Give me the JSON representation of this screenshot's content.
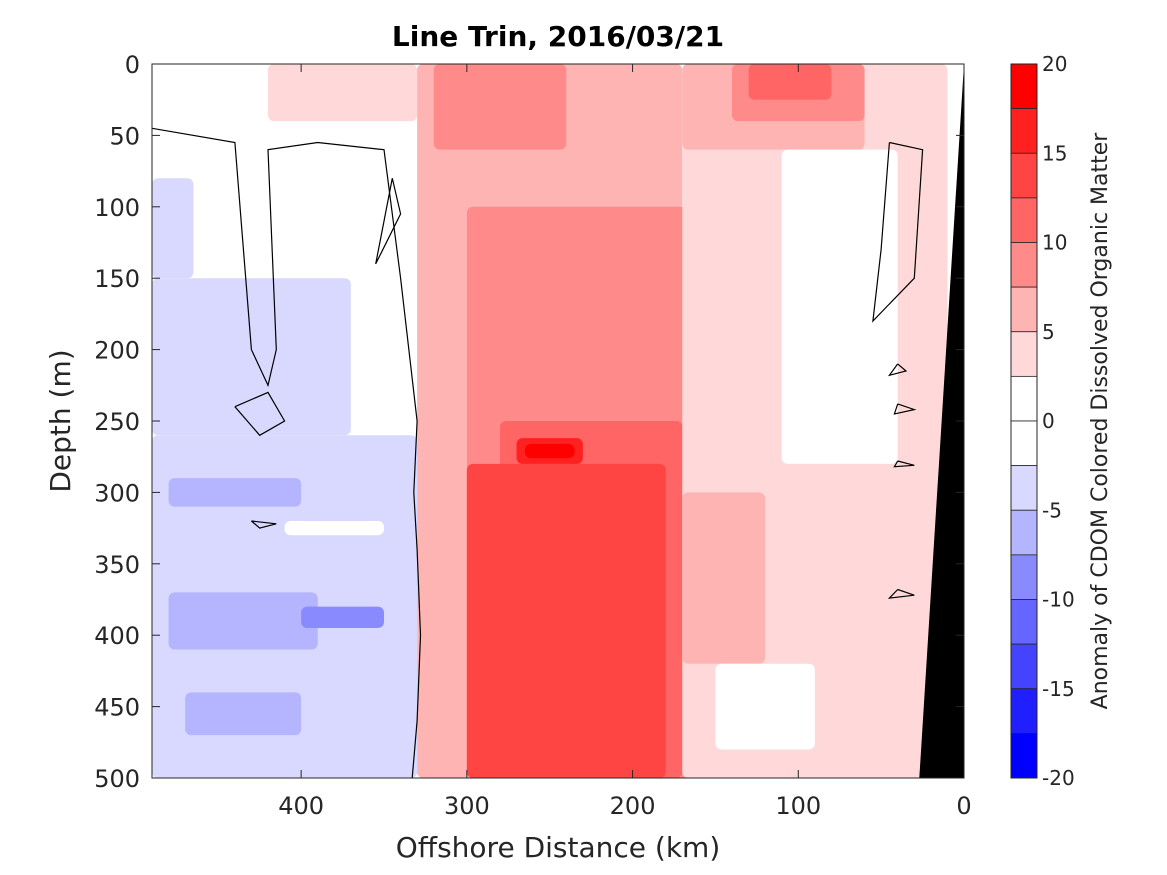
{
  "chart_data": {
    "type": "heatmap",
    "title": "Line Trin, 2016/03/21",
    "xlabel": "Offshore Distance (km)",
    "ylabel": "Depth (m)",
    "xlim": [
      490,
      0
    ],
    "ylim": [
      0,
      500
    ],
    "x_reversed": true,
    "y_reversed": true,
    "x_ticks": [
      400,
      300,
      200,
      100,
      0
    ],
    "y_ticks": [
      0,
      50,
      100,
      150,
      200,
      250,
      300,
      350,
      400,
      450,
      500
    ],
    "colorbar": {
      "label": "Anomaly of CDOM Colored Dissolved Organic Matter",
      "limits": [
        -20,
        20
      ],
      "ticks": [
        20,
        15,
        10,
        5,
        0,
        -5,
        -10,
        -15,
        -20
      ],
      "levels": [
        {
          "from": 17.5,
          "to": 20,
          "color": "#ff0000"
        },
        {
          "from": 15,
          "to": 17.5,
          "color": "#ff2020"
        },
        {
          "from": 12.5,
          "to": 15,
          "color": "#ff4444"
        },
        {
          "from": 10,
          "to": 12.5,
          "color": "#ff6565"
        },
        {
          "from": 7.5,
          "to": 10,
          "color": "#ff8a8a"
        },
        {
          "from": 5,
          "to": 7.5,
          "color": "#ffb4b4"
        },
        {
          "from": 2.5,
          "to": 5,
          "color": "#ffd9d9"
        },
        {
          "from": 0,
          "to": 2.5,
          "color": "#ffffff"
        },
        {
          "from": -2.5,
          "to": 0,
          "color": "#ffffff"
        },
        {
          "from": -5,
          "to": -2.5,
          "color": "#d9d9ff"
        },
        {
          "from": -7.5,
          "to": -5,
          "color": "#b4b4ff"
        },
        {
          "from": -10,
          "to": -7.5,
          "color": "#8a8aff"
        },
        {
          "from": -12.5,
          "to": -10,
          "color": "#6565ff"
        },
        {
          "from": -15,
          "to": -12.5,
          "color": "#4444ff"
        },
        {
          "from": -17.5,
          "to": -15,
          "color": "#2020ff"
        },
        {
          "from": -20,
          "to": -17.5,
          "color": "#0000ff"
        }
      ]
    },
    "bathymetry_color": "#000000",
    "bathymetry": [
      [
        0,
        0
      ],
      [
        27,
        500
      ],
      [
        0,
        500
      ]
    ],
    "regions": [
      {
        "x0": 490,
        "x1": 330,
        "d0": 0,
        "d1": 500,
        "value": 0
      },
      {
        "x0": 490,
        "x1": 330,
        "d0": 260,
        "d1": 500,
        "value": -3
      },
      {
        "x0": 490,
        "x1": 370,
        "d0": 150,
        "d1": 260,
        "value": -3
      },
      {
        "x0": 490,
        "x1": 465,
        "d0": 80,
        "d1": 150,
        "value": -3
      },
      {
        "x0": 420,
        "x1": 330,
        "d0": 0,
        "d1": 40,
        "value": 3
      },
      {
        "x0": 330,
        "x1": 170,
        "d0": 0,
        "d1": 500,
        "value": 6
      },
      {
        "x0": 320,
        "x1": 240,
        "d0": 0,
        "d1": 60,
        "value": 9
      },
      {
        "x0": 300,
        "x1": 160,
        "d0": 100,
        "d1": 500,
        "value": 9
      },
      {
        "x0": 280,
        "x1": 170,
        "d0": 250,
        "d1": 500,
        "value": 11
      },
      {
        "x0": 300,
        "x1": 180,
        "d0": 280,
        "d1": 500,
        "value": 13
      },
      {
        "x0": 270,
        "x1": 200,
        "d0": 300,
        "d1": 400,
        "value": 14
      },
      {
        "x0": 270,
        "x1": 230,
        "d0": 262,
        "d1": 280,
        "value": 16
      },
      {
        "x0": 265,
        "x1": 235,
        "d0": 266,
        "d1": 276,
        "value": 19
      },
      {
        "x0": 170,
        "x1": 10,
        "d0": 0,
        "d1": 500,
        "value": 3
      },
      {
        "x0": 170,
        "x1": 60,
        "d0": 0,
        "d1": 60,
        "value": 6
      },
      {
        "x0": 140,
        "x1": 60,
        "d0": 0,
        "d1": 40,
        "value": 9
      },
      {
        "x0": 130,
        "x1": 80,
        "d0": 0,
        "d1": 25,
        "value": 12
      },
      {
        "x0": 110,
        "x1": 40,
        "d0": 60,
        "d1": 280,
        "value": 0
      },
      {
        "x0": 170,
        "x1": 120,
        "d0": 300,
        "d1": 420,
        "value": 6
      },
      {
        "x0": 150,
        "x1": 90,
        "d0": 420,
        "d1": 480,
        "value": 0
      },
      {
        "x0": 480,
        "x1": 390,
        "d0": 370,
        "d1": 410,
        "value": -6
      },
      {
        "x0": 400,
        "x1": 350,
        "d0": 380,
        "d1": 395,
        "value": -9
      },
      {
        "x0": 480,
        "x1": 400,
        "d0": 290,
        "d1": 310,
        "value": -6
      },
      {
        "x0": 470,
        "x1": 400,
        "d0": 440,
        "d1": 470,
        "value": -6
      },
      {
        "x0": 410,
        "x1": 350,
        "d0": 320,
        "d1": 330,
        "value": 0
      }
    ],
    "zero_contours": [
      [
        [
          490,
          45
        ],
        [
          440,
          55
        ],
        [
          430,
          200
        ],
        [
          420,
          225
        ],
        [
          415,
          200
        ],
        [
          420,
          60
        ],
        [
          390,
          55
        ],
        [
          350,
          60
        ],
        [
          340,
          150
        ],
        [
          330,
          250
        ],
        [
          332,
          300
        ],
        [
          330,
          340
        ],
        [
          328,
          400
        ],
        [
          330,
          460
        ],
        [
          333,
          500
        ]
      ],
      [
        [
          345,
          80
        ],
        [
          350,
          110
        ],
        [
          355,
          140
        ],
        [
          340,
          105
        ],
        [
          345,
          80
        ]
      ],
      [
        [
          440,
          240
        ],
        [
          420,
          230
        ],
        [
          410,
          250
        ],
        [
          425,
          260
        ],
        [
          440,
          240
        ]
      ],
      [
        [
          45,
          55
        ],
        [
          25,
          60
        ],
        [
          30,
          150
        ],
        [
          55,
          180
        ],
        [
          50,
          130
        ],
        [
          45,
          55
        ]
      ],
      [
        [
          40,
          210
        ],
        [
          35,
          215
        ],
        [
          45,
          218
        ],
        [
          40,
          210
        ]
      ],
      [
        [
          40,
          238
        ],
        [
          30,
          242
        ],
        [
          42,
          245
        ],
        [
          40,
          238
        ]
      ],
      [
        [
          40,
          278
        ],
        [
          30,
          281
        ],
        [
          42,
          282
        ],
        [
          40,
          278
        ]
      ],
      [
        [
          40,
          368
        ],
        [
          30,
          372
        ],
        [
          45,
          374
        ],
        [
          40,
          368
        ]
      ],
      [
        [
          430,
          320
        ],
        [
          415,
          322
        ],
        [
          425,
          325
        ],
        [
          430,
          320
        ]
      ]
    ]
  }
}
